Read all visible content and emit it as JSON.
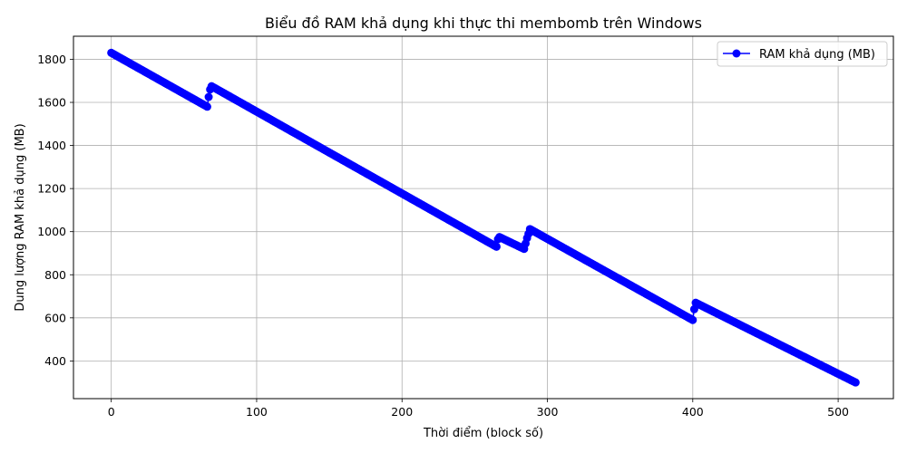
{
  "chart_data": {
    "type": "line",
    "title": "Biểu đồ RAM khả dụng khi thực thi membomb trên Windows",
    "xlabel": "Thời điểm (block số)",
    "ylabel": "Dung lượng RAM khả dụng (MB)",
    "xlim": [
      -26,
      538
    ],
    "ylim": [
      225,
      1907
    ],
    "xticks": [
      0,
      100,
      200,
      300,
      400,
      500
    ],
    "yticks": [
      400,
      600,
      800,
      1000,
      1200,
      1400,
      1600,
      1800
    ],
    "grid": true,
    "legend_position": "top-right",
    "color": "#0000ff",
    "marker": "circle",
    "series": [
      {
        "name": "RAM khả dụng (MB)",
        "segments": [
          {
            "x": [
              0,
              66
            ],
            "y": [
              1830,
              1580
            ]
          },
          {
            "x": [
              66,
              67,
              68,
              69
            ],
            "y": [
              1580,
              1625,
              1660,
              1675
            ]
          },
          {
            "x": [
              69,
              265
            ],
            "y": [
              1675,
              930
            ]
          },
          {
            "x": [
              265,
              266,
              267
            ],
            "y": [
              930,
              965,
              975
            ]
          },
          {
            "x": [
              267,
              284
            ],
            "y": [
              975,
              920
            ]
          },
          {
            "x": [
              284,
              285,
              286,
              287,
              288
            ],
            "y": [
              920,
              945,
              970,
              990,
              1012
            ]
          },
          {
            "x": [
              288,
              400
            ],
            "y": [
              1012,
              590
            ]
          },
          {
            "x": [
              400,
              401,
              402
            ],
            "y": [
              590,
              640,
              670
            ]
          },
          {
            "x": [
              402,
              512
            ],
            "y": [
              670,
              300
            ]
          }
        ]
      }
    ]
  }
}
